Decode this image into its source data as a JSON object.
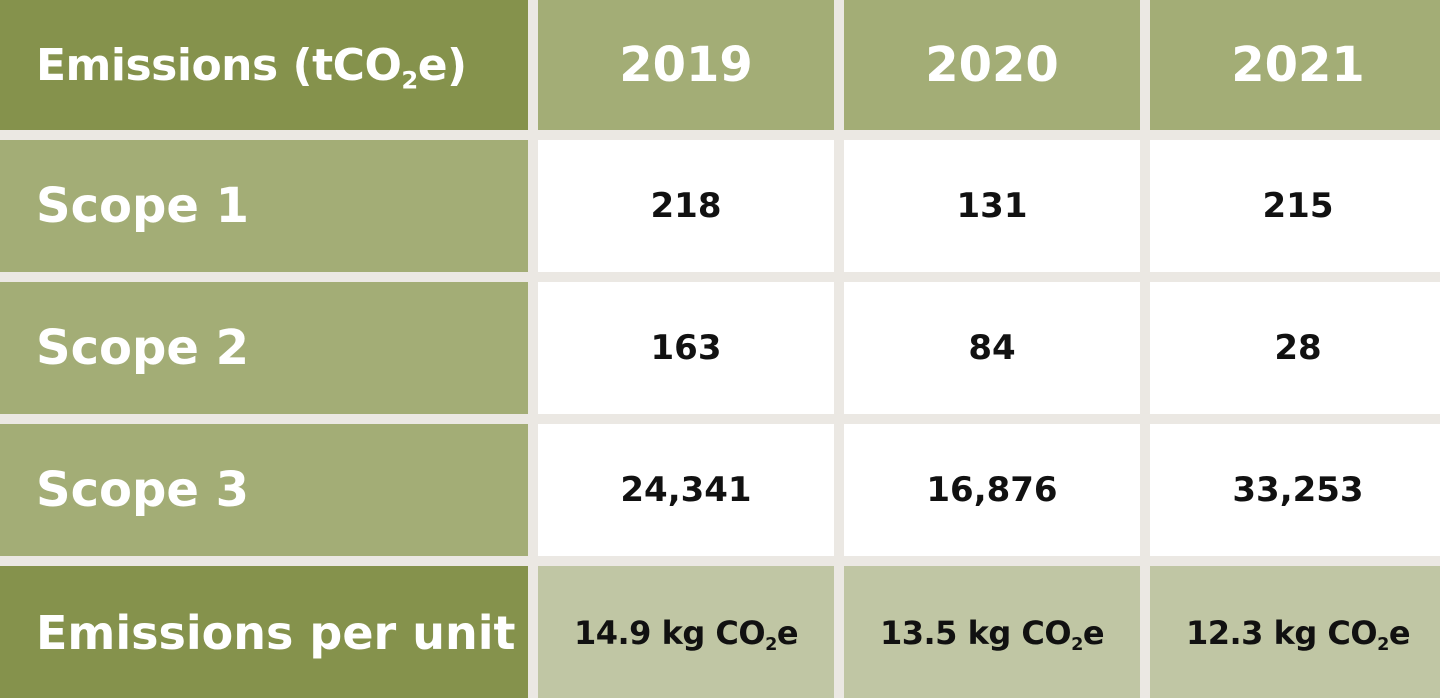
{
  "header": {
    "corner": {
      "text": "Emissions (tCO",
      "sub": "2",
      "after": "e)"
    },
    "years": [
      "2019",
      "2020",
      "2021"
    ]
  },
  "rows": [
    {
      "label": "Scope 1",
      "values": [
        "218",
        "131",
        "215"
      ]
    },
    {
      "label": "Scope 2",
      "values": [
        "163",
        "84",
        "28"
      ]
    },
    {
      "label": "Scope 3",
      "values": [
        "24,341",
        "16,876",
        "33,253"
      ]
    }
  ],
  "per_unit": {
    "label": "Emissions per unit",
    "values": [
      {
        "text": "14.9 kg CO",
        "sub": "2",
        "after": "e"
      },
      {
        "text": "13.5 kg CO",
        "sub": "2",
        "after": "e"
      },
      {
        "text": "12.3 kg CO",
        "sub": "2",
        "after": "e"
      }
    ]
  },
  "colors": {
    "dark_green": "#85924c",
    "mid_green": "#a3ad76",
    "light_green": "#c0c6a4",
    "grid_line": "#ebe8e3"
  }
}
